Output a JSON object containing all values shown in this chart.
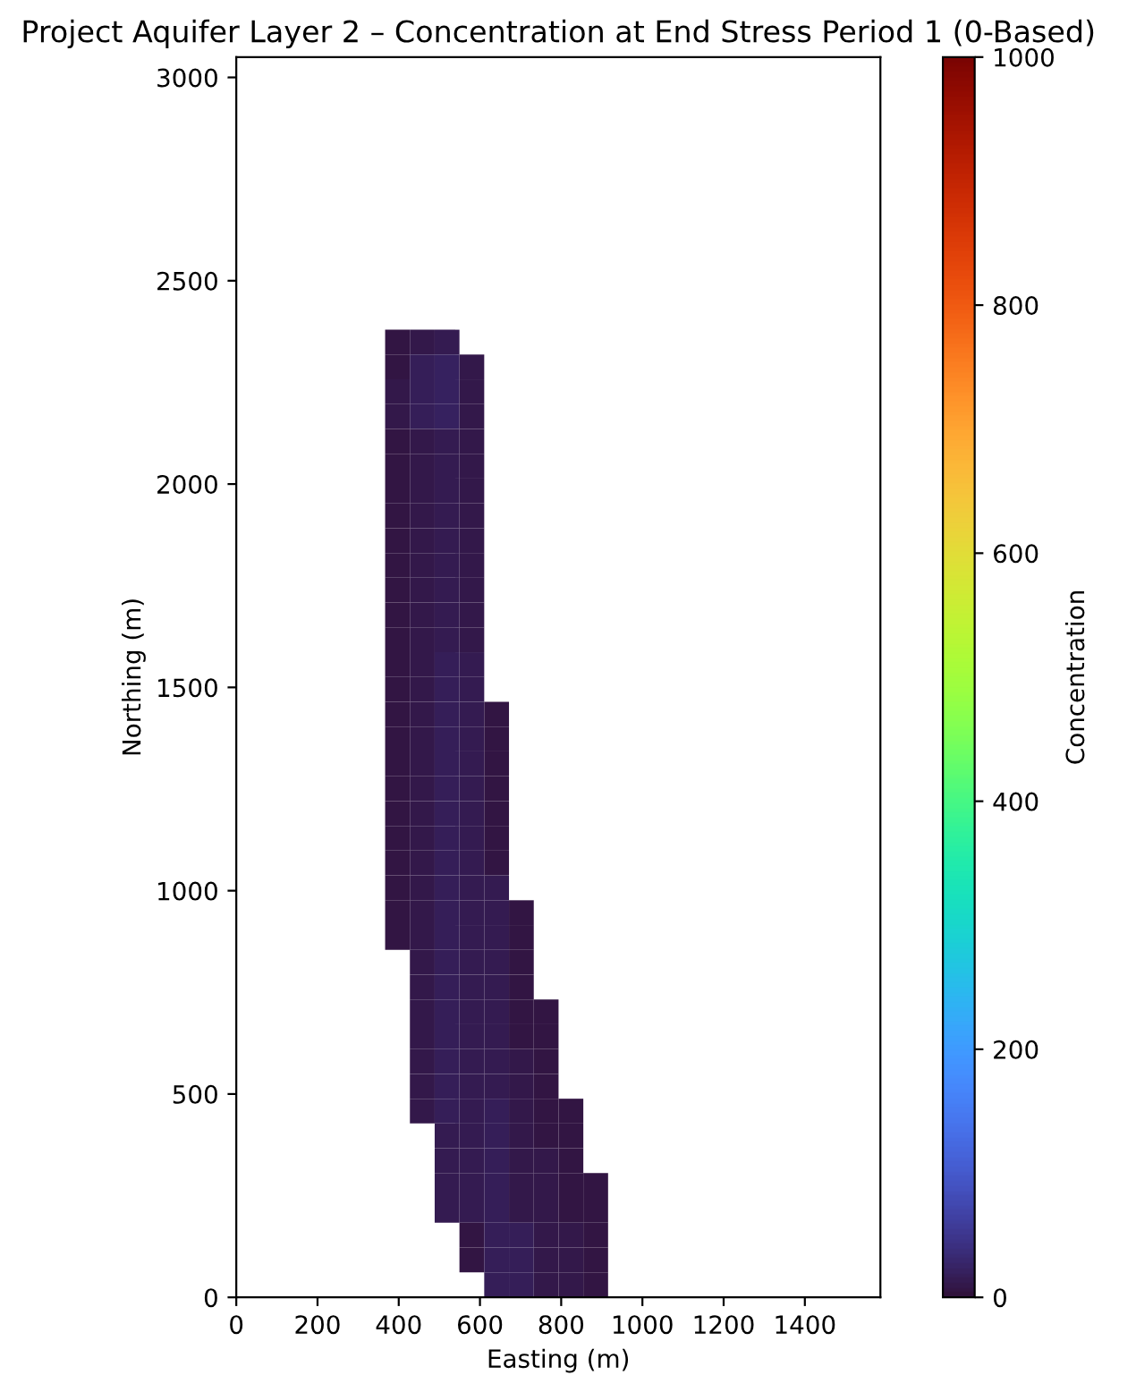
{
  "chart_data": {
    "type": "heatmap",
    "title": "Project Aquifer Layer 2 – Concentration at End Stress Period 1 (0-Based)",
    "xlabel": "Easting (m)",
    "ylabel": "Northing (m)",
    "clabel": "Concentration",
    "x": [
      397,
      458,
      519,
      580,
      641,
      702,
      763,
      824,
      885
    ],
    "y": [
      2349,
      2288,
      2227,
      2166,
      2105,
      2044,
      1983,
      1922,
      1861,
      1800,
      1739,
      1678,
      1617,
      1556,
      1495,
      1434,
      1373,
      1312,
      1251,
      1190,
      1129,
      1068,
      1007,
      946,
      885,
      824,
      763,
      702,
      641,
      580,
      519,
      458,
      397,
      336,
      275,
      214,
      153,
      92,
      31
    ],
    "cells": [
      [
        5,
        10,
        12,
        null,
        null,
        null,
        null,
        null,
        null
      ],
      [
        5,
        18,
        20,
        8,
        null,
        null,
        null,
        null,
        null
      ],
      [
        8,
        18,
        20,
        8,
        null,
        null,
        null,
        null,
        null
      ],
      [
        8,
        18,
        20,
        8,
        null,
        null,
        null,
        null,
        null
      ],
      [
        5,
        10,
        12,
        8,
        null,
        null,
        null,
        null,
        null
      ],
      [
        5,
        10,
        12,
        8,
        null,
        null,
        null,
        null,
        null
      ],
      [
        5,
        10,
        12,
        8,
        null,
        null,
        null,
        null,
        null
      ],
      [
        5,
        10,
        12,
        8,
        null,
        null,
        null,
        null,
        null
      ],
      [
        5,
        10,
        12,
        8,
        null,
        null,
        null,
        null,
        null
      ],
      [
        5,
        10,
        12,
        8,
        null,
        null,
        null,
        null,
        null
      ],
      [
        5,
        10,
        12,
        8,
        null,
        null,
        null,
        null,
        null
      ],
      [
        5,
        10,
        12,
        8,
        null,
        null,
        null,
        null,
        null
      ],
      [
        5,
        10,
        12,
        8,
        null,
        null,
        null,
        null,
        null
      ],
      [
        5,
        10,
        16,
        12,
        null,
        null,
        null,
        null,
        null
      ],
      [
        5,
        10,
        16,
        12,
        null,
        null,
        null,
        null,
        null
      ],
      [
        5,
        10,
        16,
        12,
        6,
        null,
        null,
        null,
        null
      ],
      [
        5,
        10,
        16,
        12,
        6,
        null,
        null,
        null,
        null
      ],
      [
        5,
        10,
        16,
        12,
        6,
        null,
        null,
        null,
        null
      ],
      [
        5,
        10,
        16,
        12,
        6,
        null,
        null,
        null,
        null
      ],
      [
        5,
        10,
        16,
        12,
        6,
        null,
        null,
        null,
        null
      ],
      [
        5,
        10,
        16,
        12,
        6,
        null,
        null,
        null,
        null
      ],
      [
        5,
        10,
        16,
        12,
        6,
        null,
        null,
        null,
        null
      ],
      [
        5,
        10,
        16,
        12,
        12,
        null,
        null,
        null,
        null
      ],
      [
        5,
        10,
        16,
        12,
        12,
        6,
        null,
        null,
        null
      ],
      [
        5,
        10,
        16,
        12,
        12,
        6,
        null,
        null,
        null
      ],
      [
        null,
        10,
        16,
        12,
        12,
        6,
        null,
        null,
        null
      ],
      [
        null,
        10,
        16,
        12,
        12,
        6,
        null,
        null,
        null
      ],
      [
        null,
        10,
        16,
        12,
        12,
        6,
        6,
        null,
        null
      ],
      [
        null,
        10,
        16,
        12,
        12,
        6,
        6,
        null,
        null
      ],
      [
        null,
        10,
        16,
        12,
        12,
        10,
        6,
        null,
        null
      ],
      [
        null,
        10,
        16,
        12,
        12,
        10,
        6,
        null,
        null
      ],
      [
        null,
        10,
        16,
        14,
        16,
        10,
        6,
        5,
        null
      ],
      [
        null,
        null,
        12,
        14,
        16,
        10,
        6,
        5,
        null
      ],
      [
        null,
        null,
        12,
        14,
        16,
        10,
        10,
        5,
        null
      ],
      [
        null,
        null,
        12,
        14,
        16,
        10,
        10,
        5,
        5
      ],
      [
        null,
        null,
        12,
        14,
        16,
        10,
        10,
        5,
        5
      ],
      [
        null,
        null,
        null,
        6,
        16,
        16,
        10,
        8,
        5
      ],
      [
        null,
        null,
        null,
        6,
        16,
        16,
        10,
        8,
        5
      ],
      [
        null,
        null,
        null,
        null,
        16,
        16,
        10,
        8,
        5
      ]
    ],
    "clim": [
      0,
      1000
    ],
    "cticks": [
      0,
      200,
      400,
      600,
      800,
      1000
    ],
    "xlim": [
      0,
      1586
    ],
    "ylim": [
      0,
      3050
    ],
    "xticks": [
      0,
      200,
      400,
      600,
      800,
      1000,
      1200,
      1400
    ],
    "yticks": [
      0,
      500,
      1000,
      1500,
      2000,
      2500,
      3000
    ]
  }
}
